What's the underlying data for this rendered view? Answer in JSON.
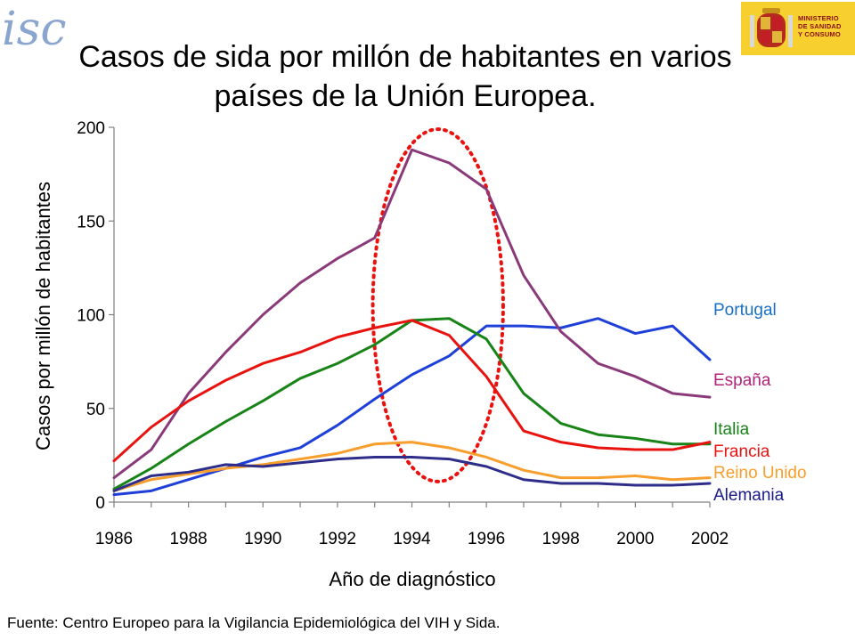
{
  "chart_data": {
    "type": "line",
    "title": "Casos de sida por millón de habitantes en varios países de la Unión Europea.",
    "xlabel": "Año de diagnóstico",
    "ylabel": "Casos por millón de habitantes",
    "xlim": [
      1986,
      2002
    ],
    "ylim": [
      0,
      200
    ],
    "xticks": [
      1986,
      1988,
      1990,
      1992,
      1994,
      1996,
      1998,
      2000,
      2002
    ],
    "yticks": [
      0,
      50,
      100,
      150,
      200
    ],
    "grid": false,
    "legend": "labels at right end of lines",
    "x": [
      1986,
      1987,
      1988,
      1989,
      1990,
      1991,
      1992,
      1993,
      1994,
      1995,
      1996,
      1997,
      1998,
      1999,
      2000,
      2001,
      2002
    ],
    "series": [
      {
        "name": "Portugal",
        "color": "#1f3fd9",
        "label_color": "#1a6fc4",
        "values": [
          4,
          6,
          12,
          18,
          24,
          29,
          41,
          55,
          68,
          78,
          94,
          94,
          93,
          98,
          90,
          94,
          76
        ]
      },
      {
        "name": "España",
        "color": "#8a3a78",
        "label_color": "#b0247a",
        "values": [
          13,
          28,
          58,
          80,
          100,
          117,
          130,
          141,
          188,
          181,
          167,
          121,
          91,
          74,
          67,
          58,
          56
        ]
      },
      {
        "name": "Italia",
        "color": "#188418",
        "label_color": "#188418",
        "values": [
          7,
          18,
          31,
          43,
          54,
          66,
          74,
          84,
          97,
          98,
          87,
          58,
          42,
          36,
          34,
          31,
          31
        ]
      },
      {
        "name": "Francia",
        "color": "#e8130f",
        "label_color": "#e8130f",
        "values": [
          22,
          40,
          54,
          65,
          74,
          80,
          88,
          93,
          97,
          89,
          67,
          38,
          32,
          29,
          28,
          28,
          32
        ]
      },
      {
        "name": "Reino Unido",
        "color": "#f79e2c",
        "label_color": "#f79e2c",
        "values": [
          6,
          12,
          15,
          18,
          20,
          23,
          26,
          31,
          32,
          29,
          24,
          17,
          13,
          13,
          14,
          12,
          13
        ]
      },
      {
        "name": "Alemania",
        "color": "#2e2e8a",
        "label_color": "#1a1a8a",
        "values": [
          6,
          14,
          16,
          20,
          19,
          21,
          23,
          24,
          24,
          23,
          19,
          12,
          10,
          10,
          9,
          9,
          10
        ]
      }
    ],
    "annotation": {
      "shape": "ellipse",
      "color": "#e8130f",
      "style": "dotted",
      "x_center": 1994.7,
      "y_center": 105,
      "x_radius": 1.75,
      "y_radius": 94
    }
  },
  "footer": {
    "source": "Fuente: Centro Europeo para la Vigilancia Epidemiológica del VIH y Sida."
  },
  "logos": {
    "left": "isc",
    "right_lines": [
      "MINISTERIO",
      "DE SANIDAD",
      "Y CONSUMO"
    ],
    "accent": "#f7cf2e"
  }
}
